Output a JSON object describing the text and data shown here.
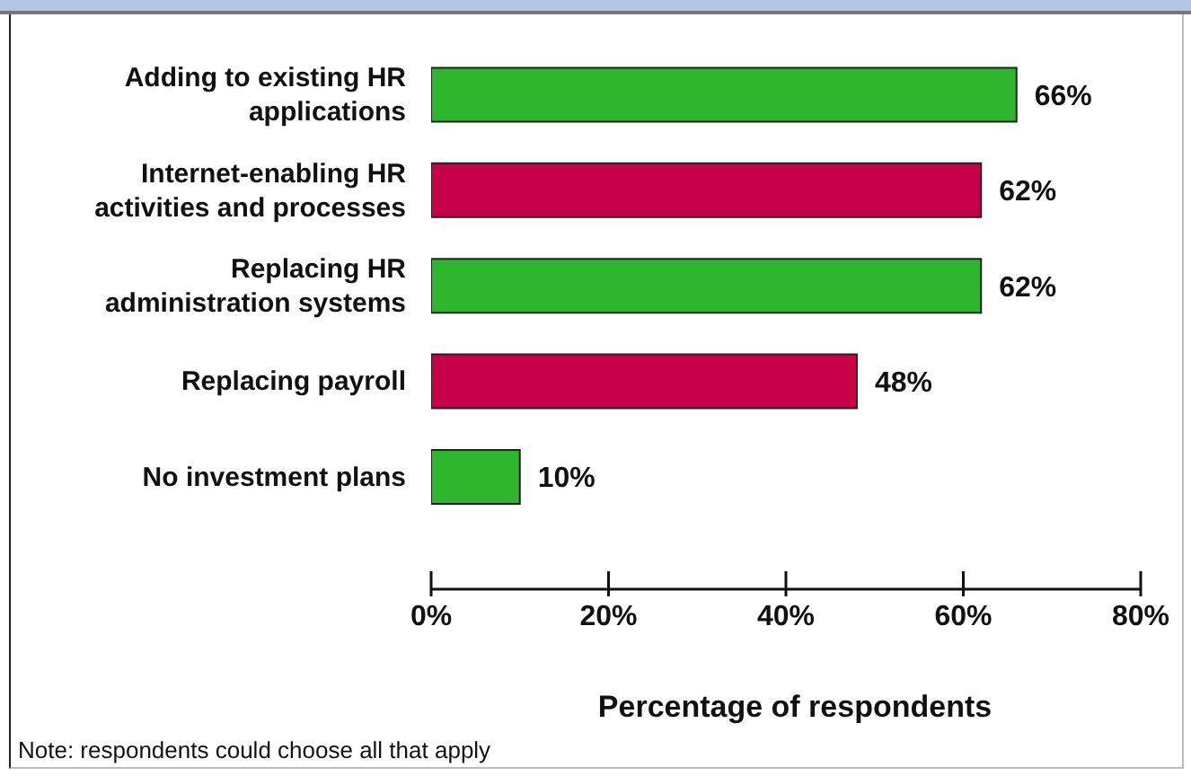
{
  "chart_data": {
    "type": "bar",
    "orientation": "horizontal",
    "xlabel": "Percentage of respondents",
    "categories": [
      "Adding to existing HR applications",
      "Internet-enabling HR activities and processes",
      "Replacing HR administration systems",
      "Replacing payroll",
      "No investment plans"
    ],
    "values": [
      66,
      62,
      62,
      48,
      10
    ],
    "colors": [
      "#2db52d",
      "#c8004a",
      "#2db52d",
      "#c8004a",
      "#2db52d"
    ],
    "value_labels": [
      "66%",
      "62%",
      "62%",
      "48%",
      "10%"
    ],
    "xlim": [
      0,
      80
    ],
    "xticks": [
      {
        "value": 0,
        "label": "0%"
      },
      {
        "value": 20,
        "label": "20%"
      },
      {
        "value": 40,
        "label": "40%"
      },
      {
        "value": 60,
        "label": "60%"
      },
      {
        "value": 80,
        "label": "80%"
      }
    ],
    "grid": false,
    "annotations": [
      "Note: respondents could choose all that apply"
    ]
  }
}
